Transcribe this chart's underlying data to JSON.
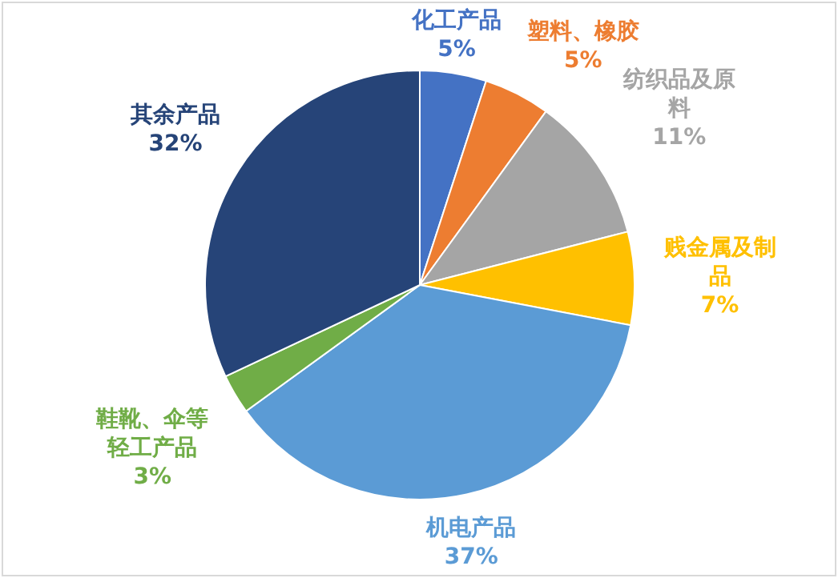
{
  "chart_data": {
    "type": "pie",
    "categories": [
      "化工产品",
      "塑料、橡胶",
      "纺织品及原料",
      "贱金属及制品",
      "机电产品",
      "鞋靴、伞等轻工产品",
      "其余产品"
    ],
    "values": [
      5,
      5,
      11,
      7,
      37,
      3,
      32
    ],
    "colors": [
      "#4472c4",
      "#ed7d31",
      "#a5a5a5",
      "#ffc000",
      "#5b9bd5",
      "#70ad47",
      "#264478"
    ],
    "value_labels": [
      "5%",
      "5%",
      "11%",
      "7%",
      "37%",
      "3%",
      "32%"
    ]
  }
}
